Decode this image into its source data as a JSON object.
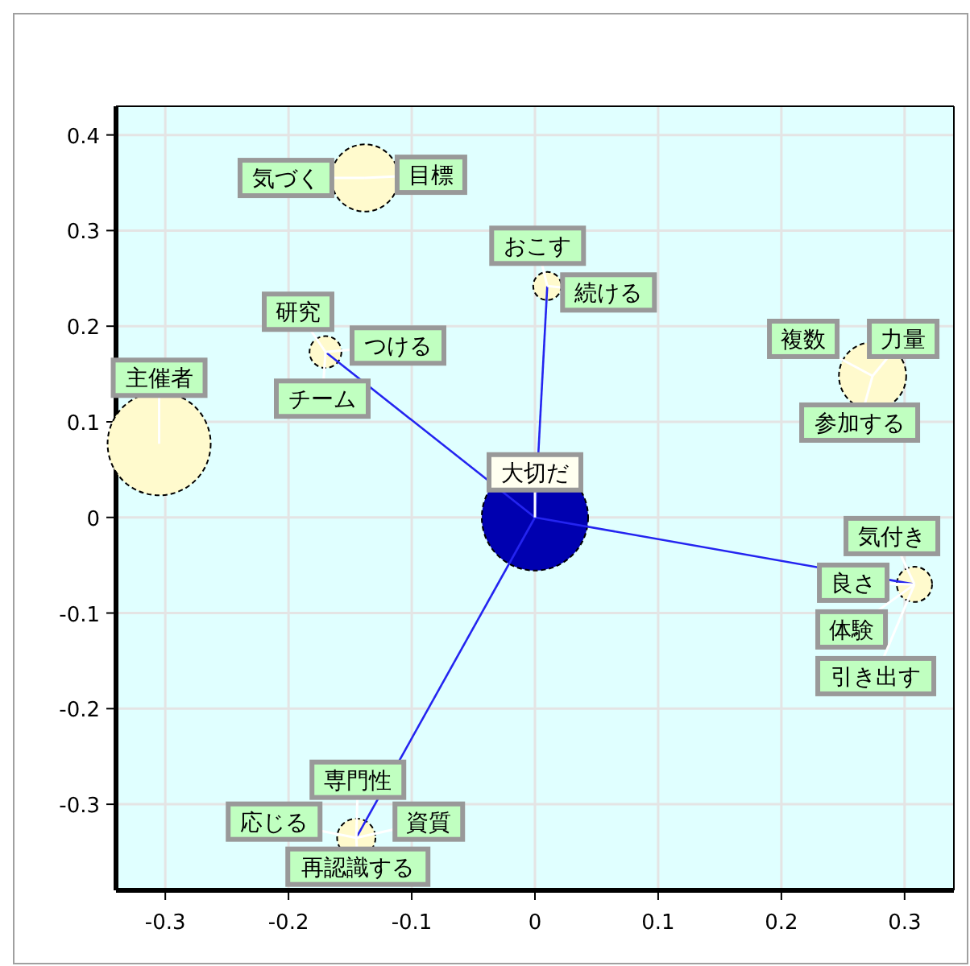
{
  "chart_data": {
    "type": "bubble",
    "xlim": [
      -0.34,
      0.34
    ],
    "ylim": [
      -0.39,
      0.43
    ],
    "xticks": [
      -0.3,
      -0.2,
      -0.1,
      0,
      0.1,
      0.2,
      0.3
    ],
    "yticks": [
      -0.3,
      -0.2,
      -0.1,
      0,
      0.1,
      0.2,
      0.3,
      0.4
    ],
    "grid": true,
    "series": [
      {
        "type": "line",
        "color": "#2424f0",
        "x": [
          0,
          -0.17
        ],
        "values": [
          0,
          0.173
        ]
      },
      {
        "type": "line",
        "color": "#2424f0",
        "x": [
          0,
          0.01
        ],
        "values": [
          0,
          0.242
        ]
      },
      {
        "type": "line",
        "color": "#2424f0",
        "x": [
          0,
          0.308
        ],
        "values": [
          0,
          -0.07
        ]
      },
      {
        "type": "line",
        "color": "#2424f0",
        "x": [
          0,
          -0.145
        ],
        "values": [
          0,
          -0.335
        ]
      },
      {
        "color": "#fffacd",
        "x": [
          -0.138,
          -0.17,
          -0.305,
          0.01,
          0.274,
          0.308,
          -0.145
        ],
        "values": [
          0.355,
          0.173,
          0.077,
          0.242,
          0.148,
          -0.07,
          -0.335
        ],
        "sizes": [
          0.4,
          0.09,
          0.94,
          0.07,
          0.4,
          0.11,
          0.13
        ]
      },
      {
        "color": "#0000b0",
        "x": [
          0
        ],
        "values": [
          0
        ],
        "sizes": [
          1
        ]
      }
    ],
    "annotations": [
      {
        "text": "気づく",
        "x": -0.138,
        "y": 0.355
      },
      {
        "text": "目標",
        "x": -0.138,
        "y": 0.355
      },
      {
        "text": "研究",
        "x": -0.17,
        "y": 0.173
      },
      {
        "text": "つける",
        "x": -0.17,
        "y": 0.173
      },
      {
        "text": "チーム",
        "x": -0.17,
        "y": 0.173
      },
      {
        "text": "主催者",
        "x": -0.305,
        "y": 0.077
      },
      {
        "text": "おこす",
        "x": 0.01,
        "y": 0.242
      },
      {
        "text": "続ける",
        "x": 0.01,
        "y": 0.242
      },
      {
        "text": "複数",
        "x": 0.274,
        "y": 0.148
      },
      {
        "text": "力量",
        "x": 0.274,
        "y": 0.148
      },
      {
        "text": "参加する",
        "x": 0.274,
        "y": 0.148
      },
      {
        "text": "大切だ",
        "x": 0,
        "y": 0
      },
      {
        "text": "気付き",
        "x": 0.308,
        "y": -0.07
      },
      {
        "text": "良さ",
        "x": 0.308,
        "y": -0.07
      },
      {
        "text": "体験",
        "x": 0.308,
        "y": -0.07
      },
      {
        "text": "引き出す",
        "x": 0.308,
        "y": -0.07
      },
      {
        "text": "専門性",
        "x": -0.145,
        "y": -0.335
      },
      {
        "text": "応じる",
        "x": -0.145,
        "y": -0.335
      },
      {
        "text": "資質",
        "x": -0.145,
        "y": -0.335
      },
      {
        "text": "再認識する",
        "x": -0.145,
        "y": -0.335
      }
    ]
  }
}
